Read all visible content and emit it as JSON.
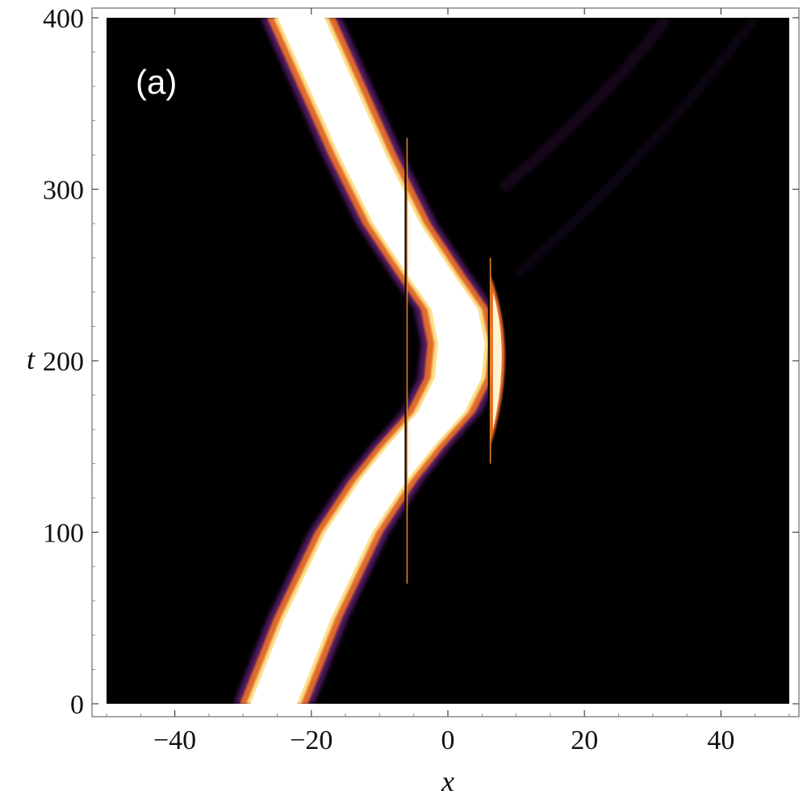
{
  "chart_data": {
    "type": "heatmap",
    "panel_label": "(a)",
    "xlabel": "x",
    "ylabel": "t",
    "xlim": [
      -50,
      50
    ],
    "ylim": [
      0,
      400
    ],
    "x_ticks": [
      -40,
      -20,
      0,
      20,
      40
    ],
    "x_tick_labels": [
      "−40",
      "−20",
      "0",
      "20",
      "40"
    ],
    "y_ticks": [
      0,
      100,
      200,
      300,
      400
    ],
    "y_tick_labels": [
      "0",
      "100",
      "200",
      "300",
      "400"
    ],
    "colormap": [
      "#000000",
      "#1a0a25",
      "#4a1a5e",
      "#8a2b6b",
      "#d9483b",
      "#f39c2b",
      "#fde5a0",
      "#ffffff"
    ],
    "background": "#000000",
    "soliton_center_path": [
      {
        "t": 0,
        "x": -25.5
      },
      {
        "t": 50,
        "x": -20.5
      },
      {
        "t": 100,
        "x": -14.5
      },
      {
        "t": 130,
        "x": -9.5
      },
      {
        "t": 150,
        "x": -5.5
      },
      {
        "t": 170,
        "x": -1.0
      },
      {
        "t": 190,
        "x": 1.5
      },
      {
        "t": 210,
        "x": 2.0
      },
      {
        "t": 230,
        "x": 1.0
      },
      {
        "t": 250,
        "x": -2.5
      },
      {
        "t": 280,
        "x": -7.5
      },
      {
        "t": 320,
        "x": -12.5
      },
      {
        "t": 360,
        "x": -17.0
      },
      {
        "t": 400,
        "x": -21.5
      }
    ],
    "soliton_half_width": 4.3,
    "barriers": [
      {
        "x": -6.2,
        "t_from": 70,
        "t_to": 330
      },
      {
        "x": 6.0,
        "t_from": 140,
        "t_to": 260
      }
    ]
  }
}
